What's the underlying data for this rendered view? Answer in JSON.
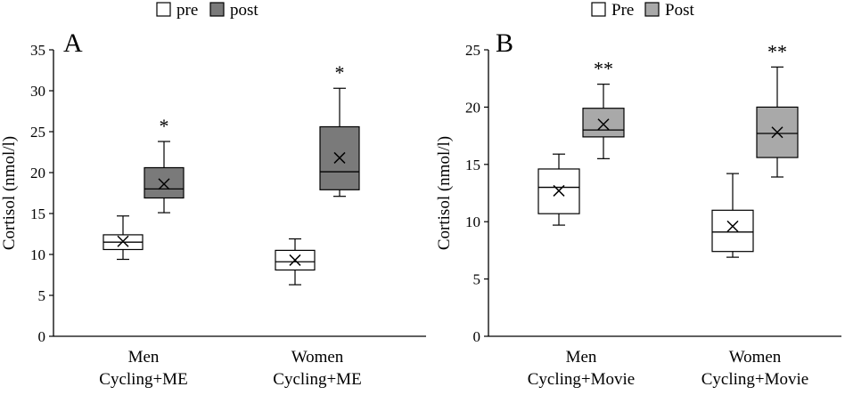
{
  "chart_data": [
    {
      "type": "box",
      "panel_label": "A",
      "ylabel": "Cortisol (nmol/l)",
      "ylim": [
        0,
        35
      ],
      "yticks": [
        0,
        5,
        10,
        15,
        20,
        25,
        30,
        35
      ],
      "legend": [
        "pre",
        "post"
      ],
      "legend_position": "top",
      "categories": [
        {
          "line1": "Men",
          "line2": "Cycling+ME"
        },
        {
          "line1": "Women",
          "line2": "Cycling+ME"
        }
      ],
      "series": [
        {
          "name": "pre",
          "color": "#ffffff",
          "boxes": [
            {
              "min": 9.4,
              "q1": 10.6,
              "median": 11.5,
              "q3": 12.4,
              "max": 14.7,
              "mean": 11.6,
              "sig": ""
            },
            {
              "min": 6.3,
              "q1": 8.1,
              "median": 9.1,
              "q3": 10.5,
              "max": 11.9,
              "mean": 9.3,
              "sig": ""
            }
          ]
        },
        {
          "name": "post",
          "color": "#7a7a7a",
          "boxes": [
            {
              "min": 15.1,
              "q1": 16.9,
              "median": 18.0,
              "q3": 20.6,
              "max": 23.8,
              "mean": 18.6,
              "sig": "*"
            },
            {
              "min": 17.1,
              "q1": 17.9,
              "median": 20.1,
              "q3": 25.6,
              "max": 30.3,
              "mean": 21.8,
              "sig": "*"
            }
          ]
        }
      ]
    },
    {
      "type": "box",
      "panel_label": "B",
      "ylabel": "Cortisol (nmol/l)",
      "ylim": [
        0,
        25
      ],
      "yticks": [
        0,
        5,
        10,
        15,
        20,
        25
      ],
      "legend": [
        "Pre",
        "Post"
      ],
      "legend_position": "top",
      "categories": [
        {
          "line1": "Men",
          "line2": "Cycling+Movie"
        },
        {
          "line1": "Women",
          "line2": "Cycling+Movie"
        }
      ],
      "series": [
        {
          "name": "Pre",
          "color": "#ffffff",
          "boxes": [
            {
              "min": 9.7,
              "q1": 10.7,
              "median": 13.0,
              "q3": 14.6,
              "max": 15.9,
              "mean": 12.7,
              "sig": ""
            },
            {
              "min": 6.9,
              "q1": 7.4,
              "median": 9.1,
              "q3": 11.0,
              "max": 14.2,
              "mean": 9.6,
              "sig": ""
            }
          ]
        },
        {
          "name": "Post",
          "color": "#a9a9a9",
          "boxes": [
            {
              "min": 15.5,
              "q1": 17.4,
              "median": 18.0,
              "q3": 19.9,
              "max": 22.0,
              "mean": 18.5,
              "sig": "**"
            },
            {
              "min": 13.9,
              "q1": 15.6,
              "median": 17.7,
              "q3": 20.0,
              "max": 23.5,
              "mean": 17.8,
              "sig": "**"
            }
          ]
        }
      ]
    }
  ]
}
